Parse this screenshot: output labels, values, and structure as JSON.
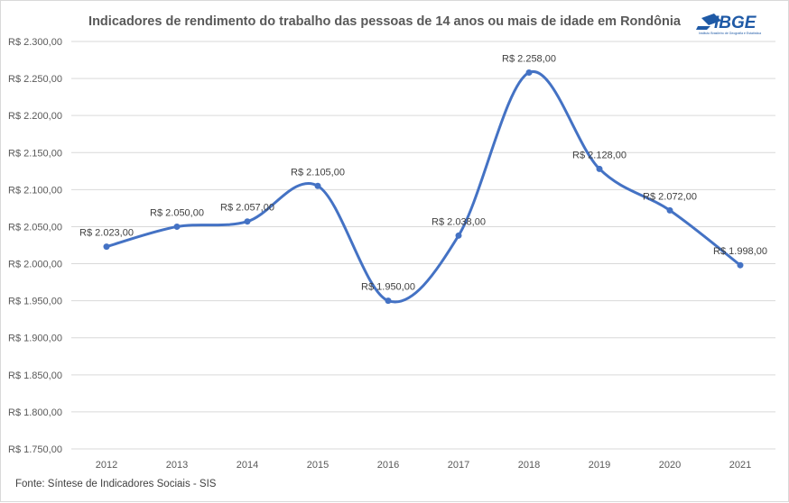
{
  "chart_data": {
    "type": "line",
    "title": "Indicadores de rendimento do trabalho das pessoas de 14 anos ou mais de idade em Rondônia",
    "categories": [
      "2012",
      "2013",
      "2014",
      "2015",
      "2016",
      "2017",
      "2018",
      "2019",
      "2020",
      "2021"
    ],
    "values": [
      2023,
      2050,
      2057,
      2105,
      1950,
      2038,
      2258,
      2128,
      2072,
      1998
    ],
    "data_labels": [
      "R$ 2.023,00",
      "R$ 2.050,00",
      "R$ 2.057,00",
      "R$ 2.105,00",
      "R$ 1.950,00",
      "R$ 2.038,00",
      "R$ 2.258,00",
      "R$ 2.128,00",
      "R$ 2.072,00",
      "R$ 1.998,00"
    ],
    "y_ticks": [
      "R$ 1.750,00",
      "R$ 1.800,00",
      "R$ 1.850,00",
      "R$ 1.900,00",
      "R$ 1.950,00",
      "R$ 2.000,00",
      "R$ 2.050,00",
      "R$ 2.100,00",
      "R$ 2.150,00",
      "R$ 2.200,00",
      "R$ 2.250,00",
      "R$ 2.300,00"
    ],
    "ylim": [
      1750,
      2300
    ],
    "smooth": true,
    "grid": true,
    "legend": "none",
    "line_color": "#4472C4",
    "source": "Fonte:  Síntese de Indicadores Sociais - SIS"
  },
  "logo": {
    "text": "IBGE",
    "subtitle": "Instituto Brasileiro de Geografia e Estatística",
    "color": "#1f5aa6"
  }
}
